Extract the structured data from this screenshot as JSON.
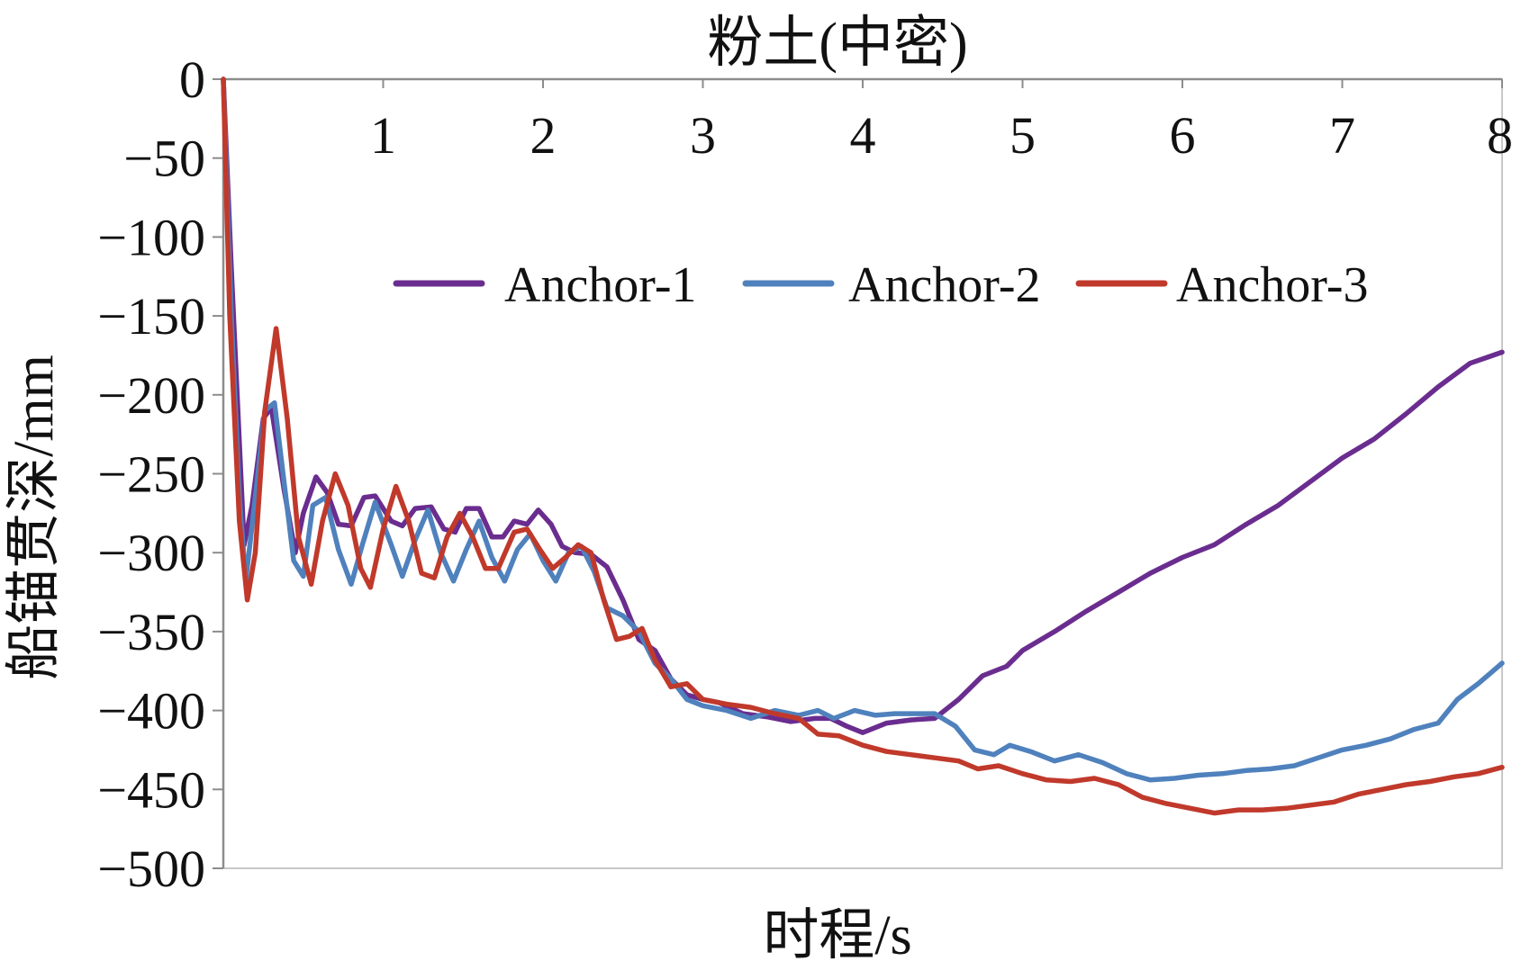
{
  "chart_data": {
    "type": "line",
    "title": "粉土(中密)",
    "xlabel": "时程/s",
    "ylabel": "船锚贯深/mm",
    "xlim": [
      0,
      8
    ],
    "ylim": [
      -500,
      0
    ],
    "x_axis_position": "top",
    "xticks": [
      1,
      2,
      3,
      4,
      5,
      6,
      7,
      8
    ],
    "yticks": [
      0,
      -50,
      -100,
      -150,
      -200,
      -250,
      -300,
      -350,
      -400,
      -450,
      -500
    ],
    "ytick_labels": [
      "0",
      "−50",
      "−100",
      "−150",
      "−200",
      "−250",
      "−300",
      "−350",
      "−400",
      "−450",
      "−500"
    ],
    "grid": false,
    "legend": "upper-right",
    "series": [
      {
        "name": "Anchor-1",
        "color": "#6a2d8f",
        "points": [
          [
            0,
            0
          ],
          [
            0.05,
            -120
          ],
          [
            0.1,
            -230
          ],
          [
            0.13,
            -295
          ],
          [
            0.18,
            -270
          ],
          [
            0.25,
            -215
          ],
          [
            0.3,
            -208
          ],
          [
            0.38,
            -260
          ],
          [
            0.45,
            -300
          ],
          [
            0.5,
            -275
          ],
          [
            0.58,
            -252
          ],
          [
            0.65,
            -262
          ],
          [
            0.72,
            -282
          ],
          [
            0.8,
            -283
          ],
          [
            0.88,
            -265
          ],
          [
            0.95,
            -264
          ],
          [
            1.05,
            -280
          ],
          [
            1.12,
            -283
          ],
          [
            1.2,
            -272
          ],
          [
            1.3,
            -271
          ],
          [
            1.38,
            -285
          ],
          [
            1.45,
            -287
          ],
          [
            1.52,
            -272
          ],
          [
            1.6,
            -272
          ],
          [
            1.68,
            -290
          ],
          [
            1.75,
            -290
          ],
          [
            1.82,
            -280
          ],
          [
            1.9,
            -282
          ],
          [
            1.97,
            -273
          ],
          [
            2.05,
            -282
          ],
          [
            2.12,
            -296
          ],
          [
            2.2,
            -300
          ],
          [
            2.3,
            -301
          ],
          [
            2.4,
            -309
          ],
          [
            2.5,
            -330
          ],
          [
            2.6,
            -355
          ],
          [
            2.7,
            -362
          ],
          [
            2.8,
            -380
          ],
          [
            2.9,
            -390
          ],
          [
            3,
            -393
          ],
          [
            3.1,
            -395
          ],
          [
            3.25,
            -402
          ],
          [
            3.4,
            -404
          ],
          [
            3.55,
            -407
          ],
          [
            3.7,
            -405
          ],
          [
            3.8,
            -405
          ],
          [
            3.9,
            -410
          ],
          [
            4,
            -414
          ],
          [
            4.15,
            -408
          ],
          [
            4.3,
            -406
          ],
          [
            4.45,
            -405
          ],
          [
            4.6,
            -393
          ],
          [
            4.75,
            -378
          ],
          [
            4.9,
            -372
          ],
          [
            5,
            -362
          ],
          [
            5.2,
            -350
          ],
          [
            5.4,
            -337
          ],
          [
            5.6,
            -325
          ],
          [
            5.8,
            -313
          ],
          [
            6,
            -303
          ],
          [
            6.2,
            -295
          ],
          [
            6.4,
            -282
          ],
          [
            6.6,
            -270
          ],
          [
            6.8,
            -255
          ],
          [
            7,
            -240
          ],
          [
            7.2,
            -228
          ],
          [
            7.4,
            -212
          ],
          [
            7.6,
            -195
          ],
          [
            7.8,
            -180
          ],
          [
            8,
            -173
          ]
        ]
      },
      {
        "name": "Anchor-2",
        "color": "#4f81bd",
        "points": [
          [
            0,
            0
          ],
          [
            0.05,
            -150
          ],
          [
            0.1,
            -265
          ],
          [
            0.14,
            -318
          ],
          [
            0.2,
            -265
          ],
          [
            0.26,
            -210
          ],
          [
            0.32,
            -205
          ],
          [
            0.38,
            -255
          ],
          [
            0.44,
            -305
          ],
          [
            0.5,
            -315
          ],
          [
            0.56,
            -270
          ],
          [
            0.64,
            -265
          ],
          [
            0.72,
            -298
          ],
          [
            0.8,
            -320
          ],
          [
            0.87,
            -295
          ],
          [
            0.95,
            -268
          ],
          [
            1.05,
            -295
          ],
          [
            1.12,
            -315
          ],
          [
            1.2,
            -292
          ],
          [
            1.28,
            -273
          ],
          [
            1.36,
            -300
          ],
          [
            1.44,
            -318
          ],
          [
            1.52,
            -298
          ],
          [
            1.6,
            -280
          ],
          [
            1.68,
            -303
          ],
          [
            1.76,
            -318
          ],
          [
            1.84,
            -298
          ],
          [
            1.92,
            -288
          ],
          [
            2,
            -305
          ],
          [
            2.08,
            -318
          ],
          [
            2.16,
            -300
          ],
          [
            2.24,
            -296
          ],
          [
            2.32,
            -312
          ],
          [
            2.4,
            -335
          ],
          [
            2.5,
            -340
          ],
          [
            2.6,
            -350
          ],
          [
            2.7,
            -370
          ],
          [
            2.8,
            -380
          ],
          [
            2.9,
            -393
          ],
          [
            3,
            -397
          ],
          [
            3.15,
            -400
          ],
          [
            3.3,
            -405
          ],
          [
            3.45,
            -400
          ],
          [
            3.6,
            -403
          ],
          [
            3.72,
            -400
          ],
          [
            3.82,
            -405
          ],
          [
            3.95,
            -400
          ],
          [
            4.08,
            -403
          ],
          [
            4.2,
            -402
          ],
          [
            4.32,
            -402
          ],
          [
            4.45,
            -402
          ],
          [
            4.58,
            -410
          ],
          [
            4.7,
            -425
          ],
          [
            4.82,
            -428
          ],
          [
            4.92,
            -422
          ],
          [
            5.05,
            -426
          ],
          [
            5.2,
            -432
          ],
          [
            5.35,
            -428
          ],
          [
            5.5,
            -433
          ],
          [
            5.65,
            -440
          ],
          [
            5.8,
            -444
          ],
          [
            5.95,
            -443
          ],
          [
            6.1,
            -441
          ],
          [
            6.25,
            -440
          ],
          [
            6.4,
            -438
          ],
          [
            6.55,
            -437
          ],
          [
            6.7,
            -435
          ],
          [
            6.85,
            -430
          ],
          [
            7,
            -425
          ],
          [
            7.15,
            -422
          ],
          [
            7.3,
            -418
          ],
          [
            7.45,
            -412
          ],
          [
            7.6,
            -408
          ],
          [
            7.72,
            -393
          ],
          [
            7.85,
            -383
          ],
          [
            8,
            -370
          ]
        ]
      },
      {
        "name": "Anchor-3",
        "color": "#c0392b",
        "points": [
          [
            0,
            0
          ],
          [
            0.04,
            -150
          ],
          [
            0.1,
            -280
          ],
          [
            0.15,
            -330
          ],
          [
            0.2,
            -300
          ],
          [
            0.26,
            -210
          ],
          [
            0.33,
            -158
          ],
          [
            0.4,
            -215
          ],
          [
            0.47,
            -290
          ],
          [
            0.55,
            -320
          ],
          [
            0.62,
            -280
          ],
          [
            0.7,
            -250
          ],
          [
            0.78,
            -270
          ],
          [
            0.86,
            -310
          ],
          [
            0.92,
            -322
          ],
          [
            1,
            -285
          ],
          [
            1.08,
            -258
          ],
          [
            1.16,
            -280
          ],
          [
            1.24,
            -313
          ],
          [
            1.32,
            -316
          ],
          [
            1.4,
            -290
          ],
          [
            1.48,
            -275
          ],
          [
            1.56,
            -290
          ],
          [
            1.64,
            -310
          ],
          [
            1.72,
            -310
          ],
          [
            1.82,
            -287
          ],
          [
            1.9,
            -285
          ],
          [
            1.98,
            -298
          ],
          [
            2.06,
            -310
          ],
          [
            2.14,
            -303
          ],
          [
            2.22,
            -295
          ],
          [
            2.3,
            -300
          ],
          [
            2.38,
            -330
          ],
          [
            2.46,
            -355
          ],
          [
            2.54,
            -353
          ],
          [
            2.62,
            -348
          ],
          [
            2.7,
            -368
          ],
          [
            2.8,
            -385
          ],
          [
            2.9,
            -383
          ],
          [
            3,
            -393
          ],
          [
            3.15,
            -396
          ],
          [
            3.3,
            -398
          ],
          [
            3.45,
            -402
          ],
          [
            3.6,
            -405
          ],
          [
            3.72,
            -415
          ],
          [
            3.85,
            -416
          ],
          [
            4,
            -422
          ],
          [
            4.15,
            -426
          ],
          [
            4.3,
            -428
          ],
          [
            4.45,
            -430
          ],
          [
            4.6,
            -432
          ],
          [
            4.72,
            -437
          ],
          [
            4.85,
            -435
          ],
          [
            5,
            -440
          ],
          [
            5.15,
            -444
          ],
          [
            5.3,
            -445
          ],
          [
            5.45,
            -443
          ],
          [
            5.6,
            -447
          ],
          [
            5.75,
            -455
          ],
          [
            5.9,
            -459
          ],
          [
            6.05,
            -462
          ],
          [
            6.2,
            -465
          ],
          [
            6.35,
            -463
          ],
          [
            6.5,
            -463
          ],
          [
            6.65,
            -462
          ],
          [
            6.8,
            -460
          ],
          [
            6.95,
            -458
          ],
          [
            7.1,
            -453
          ],
          [
            7.25,
            -450
          ],
          [
            7.4,
            -447
          ],
          [
            7.55,
            -445
          ],
          [
            7.7,
            -442
          ],
          [
            7.85,
            -440
          ],
          [
            8,
            -436
          ]
        ]
      }
    ]
  }
}
